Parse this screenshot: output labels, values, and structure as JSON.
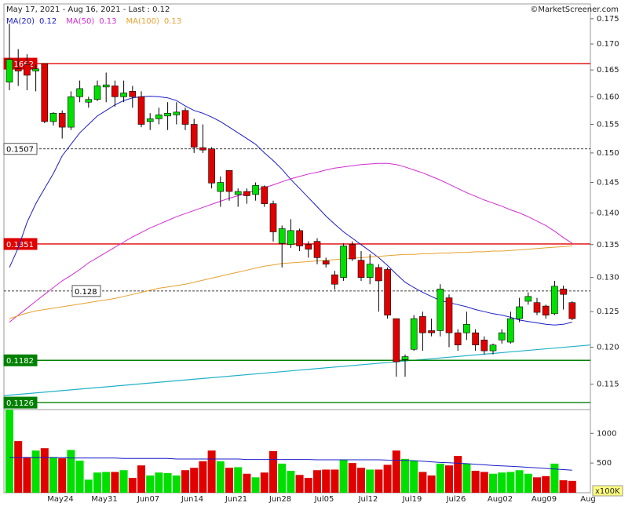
{
  "header": {
    "title": "May 17, 2021 - Aug 16, 2021 - Last : 0.12",
    "source": "©MarketScreener.com"
  },
  "chart_data": [
    {
      "type": "candlestick",
      "log_scale": true,
      "grid": false,
      "up_color": "#00e000",
      "down_color": "#e00000",
      "open": [
        0.1627,
        0.1652,
        0.166,
        0.1648,
        0.1662,
        0.1555,
        0.157,
        0.1545,
        0.16,
        0.159,
        0.1595,
        0.1618,
        0.162,
        0.16,
        0.161,
        0.16,
        0.1555,
        0.156,
        0.1565,
        0.1567,
        0.1575,
        0.155,
        0.1509,
        0.1507,
        0.1435,
        0.147,
        0.143,
        0.1435,
        0.143,
        0.1443,
        0.1415,
        0.1352,
        0.135,
        0.1372,
        0.135,
        0.1355,
        0.1325,
        0.1304,
        0.13,
        0.135,
        0.1326,
        0.13,
        0.1315,
        0.1312,
        0.124,
        0.1183,
        0.1197,
        0.1243,
        0.1223,
        0.1223,
        0.127,
        0.122,
        0.122,
        0.122,
        0.121,
        0.1195,
        0.121,
        0.1207,
        0.124,
        0.1265,
        0.1263,
        0.1258,
        0.1247,
        0.1283,
        0.1263
      ],
      "high": [
        0.174,
        0.169,
        0.168,
        0.166,
        0.1662,
        0.1572,
        0.1575,
        0.161,
        0.163,
        0.16,
        0.163,
        0.1645,
        0.163,
        0.163,
        0.162,
        0.161,
        0.157,
        0.158,
        0.159,
        0.159,
        0.158,
        0.156,
        0.155,
        0.151,
        0.146,
        0.147,
        0.144,
        0.144,
        0.145,
        0.1445,
        0.142,
        0.138,
        0.139,
        0.1375,
        0.1355,
        0.136,
        0.133,
        0.131,
        0.1352,
        0.1355,
        0.134,
        0.1335,
        0.132,
        0.1315,
        0.124,
        0.119,
        0.1245,
        0.125,
        0.124,
        0.129,
        0.1275,
        0.1225,
        0.125,
        0.1225,
        0.1215,
        0.1205,
        0.1225,
        0.125,
        0.127,
        0.1278,
        0.127,
        0.126,
        0.1295,
        0.1288,
        0.1265
      ],
      "low": [
        0.1612,
        0.162,
        0.1612,
        0.161,
        0.1552,
        0.1548,
        0.1525,
        0.154,
        0.159,
        0.158,
        0.1592,
        0.159,
        0.1582,
        0.159,
        0.158,
        0.1545,
        0.154,
        0.155,
        0.154,
        0.155,
        0.154,
        0.15,
        0.15,
        0.144,
        0.141,
        0.142,
        0.141,
        0.1415,
        0.142,
        0.141,
        0.1355,
        0.1315,
        0.1345,
        0.134,
        0.133,
        0.132,
        0.1315,
        0.1282,
        0.1295,
        0.1325,
        0.1295,
        0.129,
        0.125,
        0.124,
        0.116,
        0.116,
        0.1195,
        0.1195,
        0.1215,
        0.1215,
        0.12,
        0.1195,
        0.121,
        0.1195,
        0.119,
        0.119,
        0.1205,
        0.1205,
        0.1235,
        0.126,
        0.1245,
        0.124,
        0.1245,
        0.1253,
        0.1238
      ],
      "close": [
        0.167,
        0.1648,
        0.164,
        0.1652,
        0.1555,
        0.157,
        0.1545,
        0.16,
        0.1615,
        0.1595,
        0.162,
        0.1622,
        0.16,
        0.1607,
        0.16,
        0.155,
        0.156,
        0.1567,
        0.157,
        0.1572,
        0.155,
        0.151,
        0.1505,
        0.1449,
        0.145,
        0.1435,
        0.1435,
        0.1428,
        0.1445,
        0.1415,
        0.137,
        0.1375,
        0.1372,
        0.1348,
        0.1343,
        0.133,
        0.132,
        0.129,
        0.1348,
        0.1328,
        0.13,
        0.132,
        0.1295,
        0.1245,
        0.118,
        0.1187,
        0.124,
        0.122,
        0.122,
        0.1283,
        0.122,
        0.1203,
        0.1232,
        0.1203,
        0.1195,
        0.1203,
        0.122,
        0.124,
        0.1257,
        0.1272,
        0.1249,
        0.1245,
        0.1287,
        0.1275,
        0.124
      ],
      "series": [
        {
          "name": "MA(20)",
          "last": 0.12,
          "color": "#1c1cc8",
          "values": [
            0.1315,
            0.1345,
            0.1385,
            0.1415,
            0.144,
            0.1465,
            0.1495,
            0.1515,
            0.1535,
            0.155,
            0.1565,
            0.1575,
            0.1585,
            0.1593,
            0.1598,
            0.16,
            0.1601,
            0.16,
            0.1598,
            0.1593,
            0.1583,
            0.1575,
            0.157,
            0.1563,
            0.1555,
            0.1545,
            0.1535,
            0.1525,
            0.1515,
            0.15,
            0.1487,
            0.1472,
            0.1455,
            0.144,
            0.1425,
            0.141,
            0.1395,
            0.1382,
            0.137,
            0.136,
            0.135,
            0.134,
            0.133,
            0.1318,
            0.1305,
            0.1293,
            0.1285,
            0.1278,
            0.1272,
            0.1266,
            0.1263,
            0.126,
            0.1257,
            0.1253,
            0.125,
            0.1247,
            0.1245,
            0.1242,
            0.1238,
            0.1236,
            0.1234,
            0.1232,
            0.1231,
            0.1232,
            0.1235
          ]
        },
        {
          "name": "MA(50)",
          "last": 0.13,
          "color": "#d22cd2",
          "values": [
            0.1235,
            0.1245,
            0.1255,
            0.1265,
            0.1275,
            0.1285,
            0.1295,
            0.1303,
            0.1312,
            0.1322,
            0.133,
            0.1338,
            0.1346,
            0.1354,
            0.1362,
            0.1369,
            0.1376,
            0.1382,
            0.1388,
            0.1394,
            0.1399,
            0.1404,
            0.1409,
            0.1414,
            0.1419,
            0.1424,
            0.1428,
            0.1432,
            0.1437,
            0.1441,
            0.1446,
            0.1451,
            0.1456,
            0.146,
            0.1464,
            0.1467,
            0.1471,
            0.1474,
            0.1476,
            0.1478,
            0.148,
            0.1481,
            0.1482,
            0.1482,
            0.148,
            0.1476,
            0.1471,
            0.1466,
            0.146,
            0.1454,
            0.1447,
            0.144,
            0.1433,
            0.1427,
            0.1421,
            0.1416,
            0.1411,
            0.1405,
            0.14,
            0.1394,
            0.1387,
            0.138,
            0.1371,
            0.1361,
            0.1352
          ]
        },
        {
          "name": "MA(100)",
          "last": 0.13,
          "color": "#e8a030",
          "values": [
            0.124,
            0.1244,
            0.1248,
            0.1251,
            0.1253,
            0.1255,
            0.1257,
            0.1259,
            0.1261,
            0.1263,
            0.1265,
            0.1267,
            0.1269,
            0.1272,
            0.1275,
            0.1278,
            0.1281,
            0.1284,
            0.1286,
            0.1288,
            0.129,
            0.1293,
            0.1296,
            0.1299,
            0.1302,
            0.1305,
            0.1308,
            0.1311,
            0.1314,
            0.1317,
            0.1319,
            0.1321,
            0.1322,
            0.1323,
            0.1324,
            0.1325,
            0.1326,
            0.1327,
            0.1328,
            0.1329,
            0.133,
            0.1331,
            0.1332,
            0.1333,
            0.1334,
            0.1335,
            0.1335,
            0.1336,
            0.1336,
            0.1337,
            0.1337,
            0.1338,
            0.1338,
            0.1339,
            0.1339,
            0.134,
            0.134,
            0.1341,
            0.1342,
            0.1343,
            0.1344,
            0.1345,
            0.1346,
            0.1347,
            0.1348
          ]
        }
      ],
      "trendline": {
        "color": "#20b0c8",
        "values": [
          0.1135,
          0.1203
        ]
      },
      "levels": [
        {
          "value": 0.1662,
          "color": "#e00000",
          "dashed": false
        },
        {
          "value": 0.1507,
          "color": "#000000",
          "dashed": true
        },
        {
          "value": 0.1351,
          "color": "#e00000",
          "dashed": false
        },
        {
          "value": 0.128,
          "color": "#000000",
          "dashed": true
        },
        {
          "value": 0.1182,
          "color": "#008000",
          "dashed": false
        },
        {
          "value": 0.1126,
          "color": "#008000",
          "dashed": false
        }
      ],
      "ylim": [
        0.1117,
        0.178
      ],
      "yticks": [
        0.115,
        {
          "value": 0.12,
          "label": "0.120"
        },
        0.125,
        {
          "value": 0.13,
          "label": "0.130"
        },
        0.135,
        {
          "value": 0.14,
          "label": "0.140"
        },
        0.145,
        {
          "value": 0.15,
          "label": "0.150"
        },
        0.155,
        {
          "value": 0.16,
          "label": "0.160"
        },
        0.165,
        {
          "value": 0.17,
          "label": "0.170"
        },
        0.175
      ]
    },
    {
      "type": "bar",
      "ylabel": "x100K",
      "up_color": "#00e000",
      "down_color": "#e00000",
      "values": [
        1400,
        870,
        600,
        710,
        750,
        600,
        580,
        720,
        540,
        220,
        340,
        350,
        350,
        380,
        250,
        460,
        290,
        340,
        330,
        290,
        380,
        420,
        530,
        710,
        530,
        420,
        430,
        320,
        260,
        340,
        700,
        490,
        370,
        300,
        250,
        380,
        390,
        390,
        550,
        500,
        420,
        390,
        390,
        470,
        710,
        570,
        540,
        350,
        290,
        490,
        460,
        620,
        490,
        370,
        350,
        320,
        340,
        350,
        380,
        320,
        260,
        280,
        490,
        210,
        200
      ],
      "series": [
        {
          "color": "#1c1cc8",
          "values": [
            590,
            590,
            590,
            590,
            590,
            590,
            590,
            585,
            585,
            585,
            585,
            585,
            585,
            578,
            578,
            578,
            578,
            578,
            578,
            568,
            568,
            568,
            568,
            568,
            568,
            568,
            568,
            560,
            560,
            560,
            560,
            560,
            560,
            560,
            560,
            555,
            555,
            555,
            555,
            555,
            555,
            555,
            555,
            550,
            548,
            545,
            540,
            530,
            520,
            510,
            505,
            497,
            490,
            480,
            470,
            460,
            452,
            445,
            437,
            428,
            420,
            410,
            400,
            390,
            380
          ]
        }
      ],
      "xtick_labels": [
        "May24",
        "May31",
        "Jun07",
        "Jun14",
        "Jun21",
        "Jun28",
        "Jul05",
        "Jul12",
        "Jul19",
        "Jul26",
        "Aug02",
        "Aug09",
        "Aug"
      ],
      "ylim": [
        0,
        1400
      ],
      "yticks": [
        500,
        1000
      ]
    }
  ]
}
